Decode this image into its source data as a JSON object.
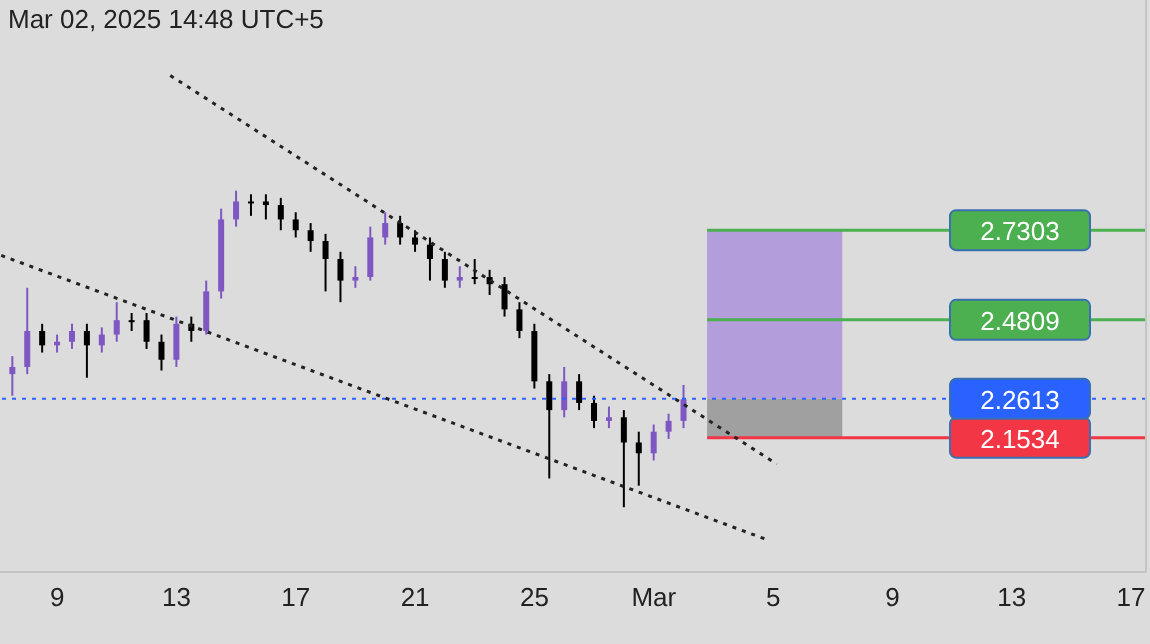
{
  "chart_data": {
    "type": "candlestick",
    "annotations": [
      "Mar 02, 2025 14:48 UTC+5"
    ],
    "x": [
      "2025-02-07T12:00",
      "2025-02-08T00:00",
      "2025-02-08T12:00",
      "2025-02-09T00:00",
      "2025-02-09T12:00",
      "2025-02-10T00:00",
      "2025-02-10T12:00",
      "2025-02-11T00:00",
      "2025-02-11T12:00",
      "2025-02-12T00:00",
      "2025-02-12T12:00",
      "2025-02-13T00:00",
      "2025-02-13T12:00",
      "2025-02-14T00:00",
      "2025-02-14T12:00",
      "2025-02-15T00:00",
      "2025-02-15T12:00",
      "2025-02-16T00:00",
      "2025-02-16T12:00",
      "2025-02-17T00:00",
      "2025-02-17T12:00",
      "2025-02-18T00:00",
      "2025-02-18T12:00",
      "2025-02-19T00:00",
      "2025-02-19T12:00",
      "2025-02-20T00:00",
      "2025-02-20T12:00",
      "2025-02-21T00:00",
      "2025-02-21T12:00",
      "2025-02-22T00:00",
      "2025-02-22T12:00",
      "2025-02-23T00:00",
      "2025-02-23T12:00",
      "2025-02-24T00:00",
      "2025-02-24T12:00",
      "2025-02-25T00:00",
      "2025-02-25T12:00",
      "2025-02-26T00:00",
      "2025-02-26T12:00",
      "2025-02-27T00:00",
      "2025-02-27T12:00",
      "2025-02-28T00:00",
      "2025-02-28T12:00",
      "2025-03-01T00:00",
      "2025-03-01T12:00",
      "2025-03-02T00:00"
    ],
    "ohlc": [
      [
        2.33,
        2.38,
        2.27,
        2.35
      ],
      [
        2.35,
        2.57,
        2.33,
        2.45
      ],
      [
        2.45,
        2.47,
        2.39,
        2.41
      ],
      [
        2.41,
        2.44,
        2.39,
        2.42
      ],
      [
        2.42,
        2.47,
        2.4,
        2.45
      ],
      [
        2.45,
        2.47,
        2.32,
        2.41
      ],
      [
        2.41,
        2.46,
        2.39,
        2.44
      ],
      [
        2.44,
        2.53,
        2.42,
        2.48
      ],
      [
        2.48,
        2.5,
        2.45,
        2.48
      ],
      [
        2.48,
        2.5,
        2.4,
        2.42
      ],
      [
        2.42,
        2.44,
        2.34,
        2.37
      ],
      [
        2.37,
        2.49,
        2.35,
        2.47
      ],
      [
        2.47,
        2.49,
        2.42,
        2.45
      ],
      [
        2.45,
        2.59,
        2.44,
        2.56
      ],
      [
        2.56,
        2.79,
        2.54,
        2.76
      ],
      [
        2.76,
        2.84,
        2.74,
        2.81
      ],
      [
        2.81,
        2.83,
        2.77,
        2.81
      ],
      [
        2.81,
        2.83,
        2.76,
        2.8
      ],
      [
        2.8,
        2.82,
        2.73,
        2.76
      ],
      [
        2.76,
        2.78,
        2.71,
        2.73
      ],
      [
        2.73,
        2.75,
        2.67,
        2.7
      ],
      [
        2.7,
        2.72,
        2.56,
        2.65
      ],
      [
        2.65,
        2.67,
        2.53,
        2.59
      ],
      [
        2.59,
        2.63,
        2.57,
        2.6
      ],
      [
        2.6,
        2.74,
        2.59,
        2.71
      ],
      [
        2.71,
        2.78,
        2.69,
        2.75
      ],
      [
        2.75,
        2.77,
        2.69,
        2.71
      ],
      [
        2.71,
        2.73,
        2.67,
        2.69
      ],
      [
        2.69,
        2.71,
        2.59,
        2.65
      ],
      [
        2.65,
        2.67,
        2.57,
        2.59
      ],
      [
        2.59,
        2.63,
        2.57,
        2.6
      ],
      [
        2.6,
        2.65,
        2.58,
        2.6
      ],
      [
        2.6,
        2.62,
        2.55,
        2.58
      ],
      [
        2.58,
        2.6,
        2.49,
        2.51
      ],
      [
        2.51,
        2.53,
        2.43,
        2.45
      ],
      [
        2.45,
        2.47,
        2.29,
        2.31
      ],
      [
        2.31,
        2.33,
        2.04,
        2.23
      ],
      [
        2.23,
        2.35,
        2.21,
        2.31
      ],
      [
        2.31,
        2.33,
        2.23,
        2.25
      ],
      [
        2.25,
        2.27,
        2.18,
        2.2
      ],
      [
        2.2,
        2.24,
        2.18,
        2.21
      ],
      [
        2.21,
        2.23,
        1.96,
        2.14
      ],
      [
        2.14,
        2.17,
        2.02,
        2.11
      ],
      [
        2.11,
        2.19,
        2.09,
        2.17
      ],
      [
        2.17,
        2.22,
        2.15,
        2.2
      ],
      [
        2.2,
        2.3,
        2.18,
        2.26
      ]
    ],
    "colors": [
      "#7e57c2",
      "#7e57c2",
      "#000000",
      "#7e57c2",
      "#7e57c2",
      "#000000",
      "#7e57c2",
      "#7e57c2",
      "#000000",
      "#000000",
      "#000000",
      "#7e57c2",
      "#000000",
      "#7e57c2",
      "#7e57c2",
      "#7e57c2",
      "#000000",
      "#000000",
      "#000000",
      "#000000",
      "#000000",
      "#000000",
      "#000000",
      "#7e57c2",
      "#7e57c2",
      "#7e57c2",
      "#000000",
      "#000000",
      "#000000",
      "#000000",
      "#7e57c2",
      "#000000",
      "#000000",
      "#000000",
      "#000000",
      "#000000",
      "#000000",
      "#7e57c2",
      "#000000",
      "#000000",
      "#7e57c2",
      "#000000",
      "#000000",
      "#7e57c2",
      "#7e57c2",
      "#7e57c2"
    ],
    "series": [
      {
        "type": "line",
        "color": "#222222",
        "line_style": "dotted",
        "x": [
          "2025-02-12T19:00",
          "2025-03-05T03:00"
        ],
        "values": [
          3.16,
          2.08
        ]
      },
      {
        "type": "line",
        "color": "#222222",
        "line_style": "dotted",
        "x": [
          "2025-02-07T03:00",
          "2025-03-04T19:00"
        ],
        "values": [
          2.66,
          1.87
        ]
      }
    ],
    "ref_lines": [
      {
        "axis": "y",
        "value": 2.7303,
        "color": "#4caf50",
        "line_style": "solid"
      },
      {
        "axis": "y",
        "value": 2.4809,
        "color": "#4caf50",
        "line_style": "solid"
      },
      {
        "axis": "y",
        "value": 2.2613,
        "color": "#2962ff",
        "line_style": "dotted"
      },
      {
        "axis": "y",
        "value": 2.1534,
        "color": "#f23645",
        "line_style": "solid"
      }
    ],
    "bands": [
      {
        "axis": "y",
        "from": 2.2613,
        "to": 2.7303,
        "color": "#b39ddb"
      },
      {
        "axis": "y",
        "from": 2.1534,
        "to": 2.2613,
        "color": "#a0a0a0"
      }
    ],
    "xlim": [
      "2025-02-07T02:00",
      "2025-03-17T12:00"
    ],
    "xticks": [
      {
        "value": "2025-02-09",
        "label": "9"
      },
      {
        "value": "2025-02-13",
        "label": "13"
      },
      {
        "value": "2025-02-17",
        "label": "17"
      },
      {
        "value": "2025-02-21",
        "label": "21"
      },
      {
        "value": "2025-02-25",
        "label": "25"
      },
      {
        "value": "2025-03-01",
        "label": "Mar"
      },
      {
        "value": "2025-03-05",
        "label": "5"
      },
      {
        "value": "2025-03-09",
        "label": "9"
      },
      {
        "value": "2025-03-13",
        "label": "13"
      },
      {
        "value": "2025-03-17",
        "label": "17"
      }
    ],
    "ylim": [
      1.78,
      3.37
    ],
    "yticks": [
      2.1534,
      2.2613,
      2.4809,
      2.7303
    ],
    "grid": false,
    "legend": false,
    "marker": "none"
  }
}
